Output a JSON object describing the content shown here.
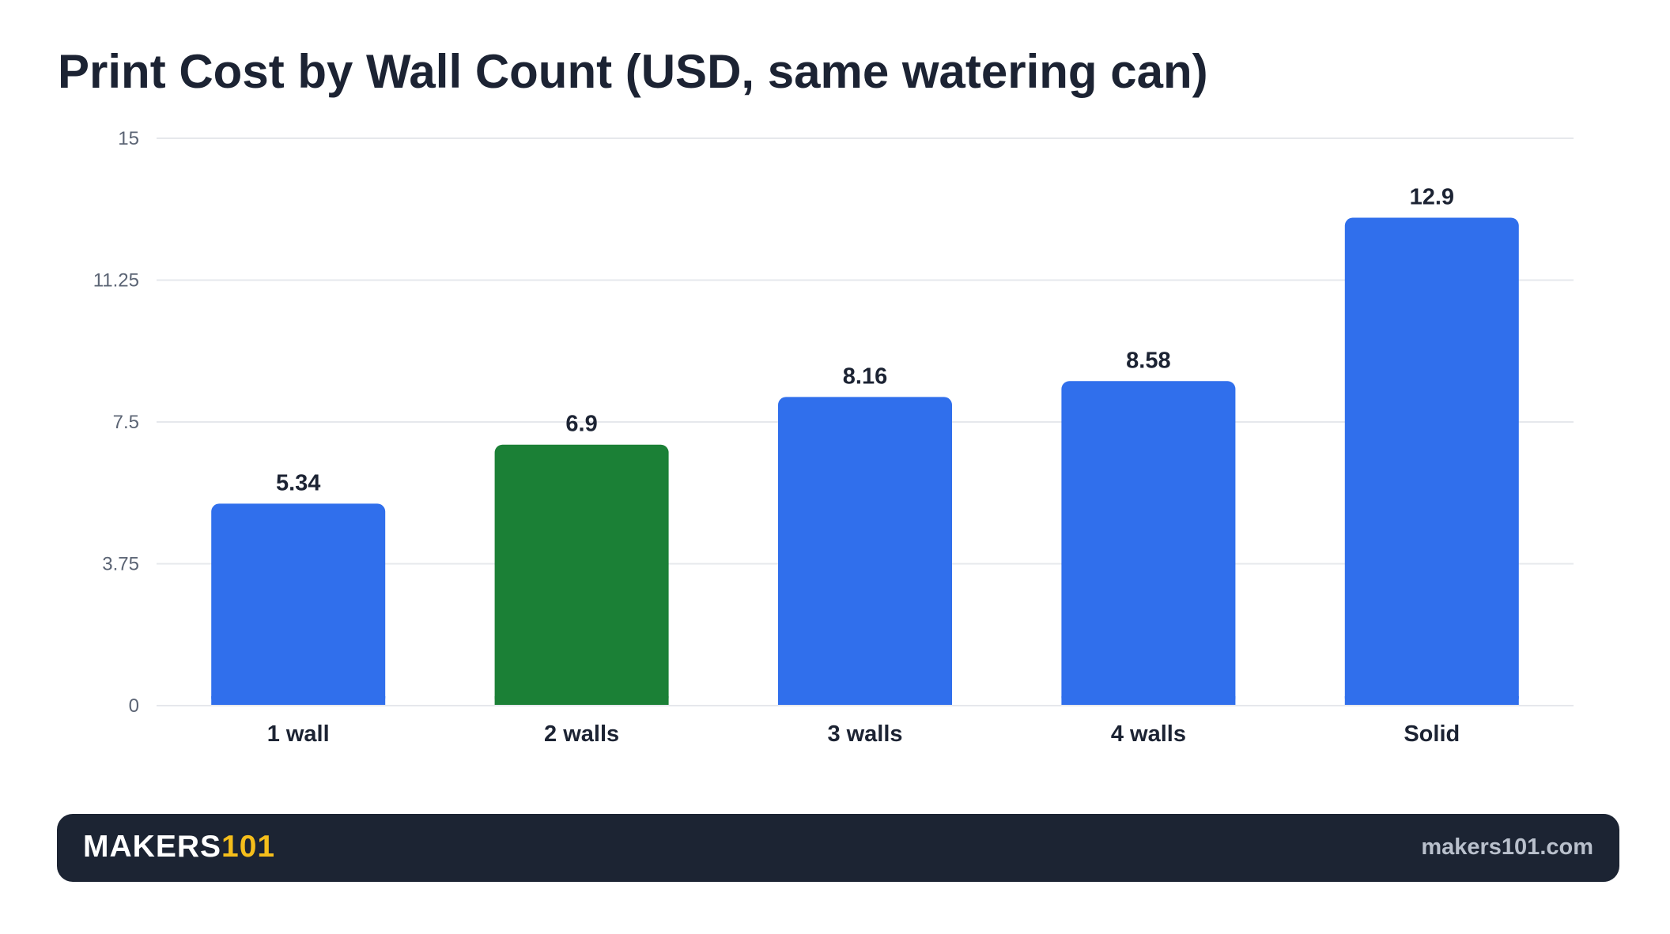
{
  "chart_data": {
    "type": "bar",
    "title": "Print Cost by Wall Count (USD, same watering can)",
    "categories": [
      "1 wall",
      "2 walls",
      "3 walls",
      "4 walls",
      "Solid"
    ],
    "values": [
      5.34,
      6.9,
      8.16,
      8.58,
      12.9
    ],
    "value_labels": [
      "5.34",
      "6.9",
      "8.16",
      "8.58",
      "12.9"
    ],
    "highlight_index": 1,
    "ylim": [
      0,
      15
    ],
    "yticks": [
      0,
      3.75,
      7.5,
      11.25,
      15
    ],
    "ytick_labels": [
      "0",
      "3.75",
      "7.5",
      "11.25",
      "15"
    ],
    "xlabel": "",
    "ylabel": "",
    "grid": true,
    "colors": {
      "bar": "#306fec",
      "highlight": "#1b8036",
      "grid": "#e6e8ec",
      "text": "#1c2333",
      "tick": "#5b6474"
    }
  },
  "footer": {
    "brand_main": "MAKERS",
    "brand_accent": "101",
    "site": "makers101.com"
  }
}
